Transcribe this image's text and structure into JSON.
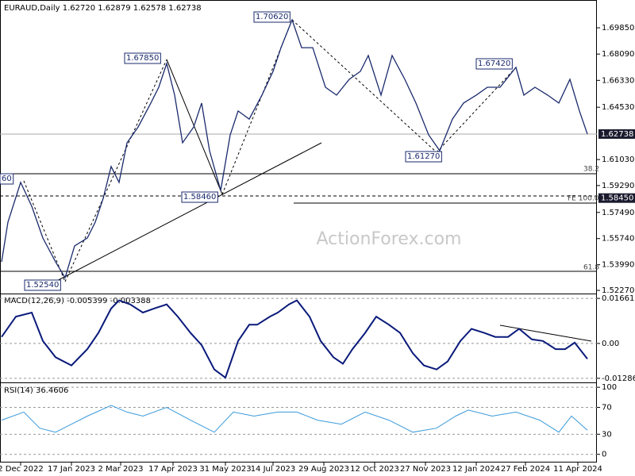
{
  "chart_data": [
    {
      "type": "line",
      "title": "EURAUD,Daily  1.62720 1.62879 1.62578 1.62738",
      "watermark": "ActionForex.com",
      "x": [
        0,
        4,
        12,
        19,
        26,
        34,
        40,
        46,
        54,
        59,
        64,
        69,
        74,
        79,
        86,
        94,
        99,
        104,
        109,
        114,
        121,
        126,
        131,
        138,
        144,
        149,
        156,
        164,
        171,
        176,
        183,
        189,
        196,
        204,
        211,
        219,
        226,
        231,
        239,
        246,
        254,
        261,
        269,
        276,
        284,
        291,
        299,
        306,
        314,
        324,
        329,
        336,
        344,
        351,
        358,
        364,
        369
      ],
      "series": [
        {
          "color": "#1a2a6c",
          "values": [
            1.5418,
            1.5684,
            1.595,
            1.579,
            1.5578,
            1.5418,
            1.5312,
            1.5525,
            1.5578,
            1.5684,
            1.5843,
            1.6056,
            1.595,
            1.6215,
            1.6321,
            1.6481,
            1.6587,
            1.6746,
            1.6534,
            1.6215,
            1.6321,
            1.6481,
            1.6162,
            1.5896,
            1.6268,
            1.6428,
            1.6374,
            1.6534,
            1.6693,
            1.6852,
            1.7038,
            1.6852,
            1.6852,
            1.6587,
            1.6534,
            1.664,
            1.6693,
            1.6799,
            1.6534,
            1.6799,
            1.664,
            1.6481,
            1.6268,
            1.6162,
            1.6374,
            1.6481,
            1.6534,
            1.6587,
            1.6587,
            1.672,
            1.6534,
            1.6587,
            1.6534,
            1.6481,
            1.664,
            1.6428,
            1.6274
          ]
        }
      ],
      "xlim": [
        0,
        375
      ],
      "ylim": [
        1.5206,
        1.7171
      ],
      "yticks": [
        {
          "value": 1.6985,
          "label": "1.69850"
        },
        {
          "value": 1.6809,
          "label": "1.68090"
        },
        {
          "value": 1.6633,
          "label": "1.66330"
        },
        {
          "value": 1.6453,
          "label": "1.64530"
        },
        {
          "value": 1.6103,
          "label": "1.61030"
        },
        {
          "value": 1.5929,
          "label": "1.59290"
        },
        {
          "value": 1.5749,
          "label": "1.57490"
        },
        {
          "value": 1.5574,
          "label": "1.55740"
        },
        {
          "value": 1.5399,
          "label": "1.53990"
        },
        {
          "value": 1.5227,
          "label": "1.52270"
        }
      ],
      "price_tags": [
        {
          "value": 1.62738,
          "label": "1.62738"
        },
        {
          "value": 1.5845,
          "label": "1.58450"
        }
      ],
      "annotations": [
        "1.70620",
        "1.67850",
        "1.67420",
        "1.61270",
        "1.58460",
        "1.52540",
        "60",
        "38.2",
        "FE 100.0",
        "61.8"
      ]
    },
    {
      "type": "line",
      "title": "MACD(12,26,9) -0.005399 -0.003388",
      "x": [
        0,
        9,
        19,
        26,
        34,
        44,
        54,
        61,
        69,
        74,
        81,
        89,
        96,
        104,
        111,
        119,
        126,
        134,
        141,
        149,
        156,
        161,
        169,
        174,
        181,
        186,
        194,
        201,
        209,
        215,
        221,
        229,
        236,
        244,
        251,
        259,
        266,
        274,
        281,
        289,
        296,
        304,
        311,
        319,
        326,
        334,
        341,
        349,
        355,
        361,
        369
      ],
      "series": [
        {
          "color": "#0a1a7a",
          "values": [
            0.0024,
            0.0099,
            0.0114,
            0.0009,
            -0.0051,
            -0.0081,
            -0.0021,
            0.0039,
            0.0129,
            0.0159,
            0.0144,
            0.0114,
            0.0129,
            0.0144,
            0.0099,
            0.0039,
            -0.0006,
            -0.0096,
            -0.0126,
            0.0009,
            0.0069,
            0.0069,
            0.0099,
            0.0114,
            0.0144,
            0.0159,
            0.0099,
            0.0009,
            -0.0051,
            -0.0075,
            -0.0021,
            0.0039,
            0.0099,
            0.0069,
            0.0039,
            -0.0036,
            -0.0081,
            -0.0096,
            -0.0066,
            0.0009,
            0.0054,
            0.0039,
            0.0024,
            0.0024,
            0.0054,
            0.0015,
            0.0009,
            -0.0021,
            -0.0021,
            0.0003,
            -0.0057
          ]
        }
      ],
      "xlim": [
        0,
        375
      ],
      "ylim": [
        -0.01437,
        0.01842
      ],
      "yticks": [
        0.016619,
        {
          "value": 0,
          "label": "0.00"
        },
        -0.012864
      ]
    },
    {
      "type": "line",
      "title": "RSI(14) 36.4606",
      "x": [
        0,
        14,
        24,
        34,
        44,
        54,
        69,
        79,
        89,
        104,
        119,
        134,
        146,
        159,
        174,
        186,
        199,
        214,
        229,
        244,
        259,
        274,
        286,
        294,
        309,
        324,
        339,
        351,
        359,
        369
      ],
      "series": [
        {
          "color": "#3a9ad9",
          "values": [
            51,
            63,
            39,
            33,
            45,
            57,
            73,
            63,
            57,
            70,
            51,
            33,
            63,
            57,
            63,
            63,
            51,
            45,
            63,
            51,
            33,
            39,
            57,
            66,
            57,
            63,
            51,
            33,
            57,
            36
          ]
        }
      ],
      "xlim": [
        0,
        375
      ],
      "ylim": [
        -12.2,
        107.3
      ],
      "yticks": [
        100,
        70,
        30,
        0
      ],
      "xticks": [
        {
          "value": 12,
          "label": "2 Dec 2022"
        },
        {
          "value": 44,
          "label": "17 Jan 2023"
        },
        {
          "value": 75,
          "label": "2 Mar 2023"
        },
        {
          "value": 108,
          "label": "17 Apr 2023"
        },
        {
          "value": 141,
          "label": "31 May 2023"
        },
        {
          "value": 171,
          "label": "14 Jul 2023"
        },
        {
          "value": 203,
          "label": "29 Aug 2023"
        },
        {
          "value": 235,
          "label": "12 Oct 2023"
        },
        {
          "value": 267,
          "label": "27 Nov 2023"
        },
        {
          "value": 299,
          "label": "12 Jan 2024"
        },
        {
          "value": 330,
          "label": "27 Feb 2024"
        },
        {
          "value": 363,
          "label": "11 Apr 2024"
        }
      ]
    }
  ]
}
